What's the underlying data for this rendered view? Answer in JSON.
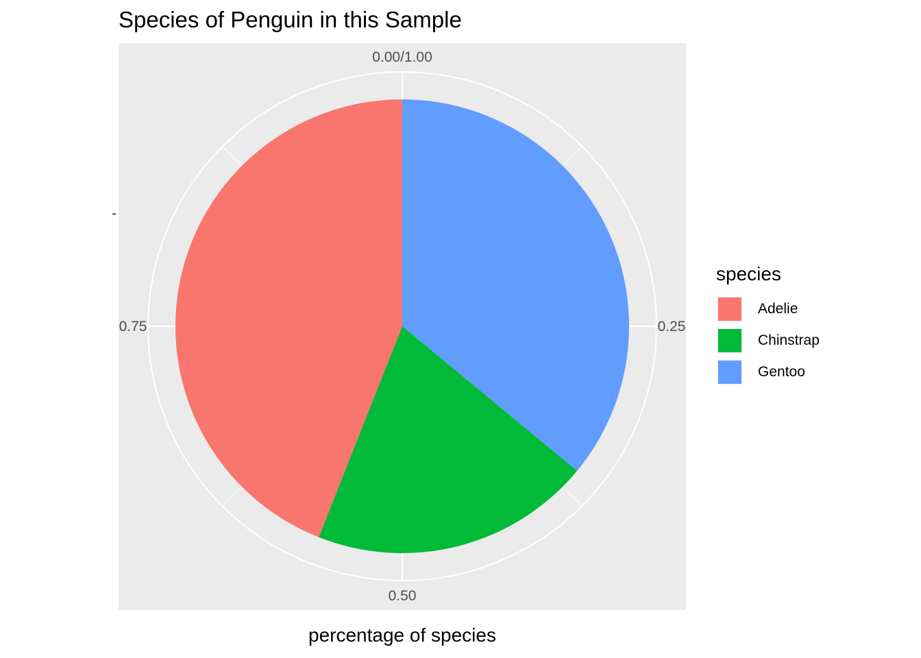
{
  "chart_data": {
    "type": "pie",
    "title": "Species of Penguin in this Sample",
    "xlabel": "percentage of species",
    "ylabel": "",
    "ytick_label": "-",
    "theta_ticks": [
      {
        "value": 0.0,
        "label": "0.00/1.00"
      },
      {
        "value": 0.25,
        "label": "0.25"
      },
      {
        "value": 0.5,
        "label": "0.50"
      },
      {
        "value": 0.75,
        "label": "0.75"
      }
    ],
    "legend": {
      "title": "species",
      "position": "right"
    },
    "slices": [
      {
        "name": "Adelie",
        "value": 0.44,
        "color": "#F8766D"
      },
      {
        "name": "Chinstrap",
        "value": 0.2,
        "color": "#00BA38"
      },
      {
        "name": "Gentoo",
        "value": 0.36,
        "color": "#619CFF"
      }
    ],
    "slice_order_clockwise_from_top": [
      "Gentoo",
      "Chinstrap",
      "Adelie"
    ],
    "panel_background": "#EBEBEB",
    "grid_color": "#FFFFFF"
  }
}
